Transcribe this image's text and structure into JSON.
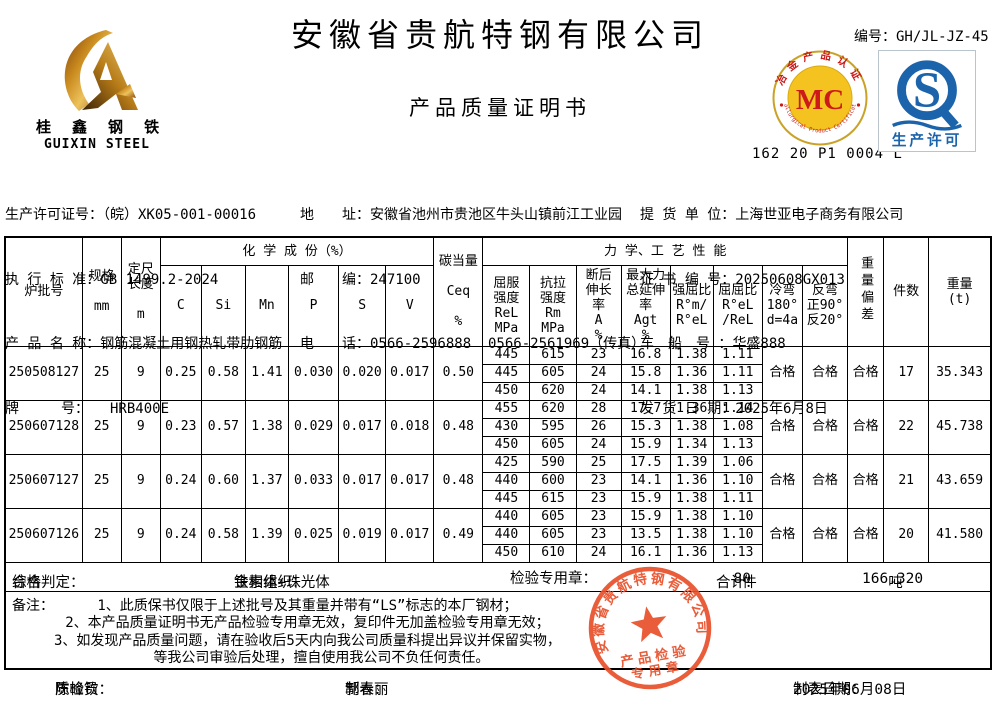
{
  "header": {
    "doc_no": "编号：GH/JL-JZ-45",
    "company_name": "安徽省贵航特钢有限公司",
    "doc_title": "产品质量证明书",
    "mc_cert_code": "162 20 P1 0004 L"
  },
  "guixin_logo": {
    "cn": "桂 鑫 钢 铁",
    "en": "GUIXIN STEEL"
  },
  "mc_logo": {
    "letters": "MC",
    "arc_top": "冶金产品认证",
    "arc_bottom": "Metallurgical Product Certification"
  },
  "sq_logo": {
    "letter": "S",
    "caption": "生产许可"
  },
  "info": {
    "left": [
      {
        "label": "生产许可证号：",
        "value": "（皖）XK05-001-00016"
      },
      {
        "label": "执 行 标 准：",
        "value": "GB 1499.2-2024"
      },
      {
        "label": "产 品 名 称：",
        "value": "钢筋混凝土用钢热轧带肋钢筋"
      },
      {
        "label": "牌　　　号：",
        "value": "　　HRB400E"
      }
    ],
    "middle": [
      {
        "label": "地　　址：",
        "value": "安徽省池州市贵池区牛头山镇前江工业园"
      },
      {
        "label": "邮　　编：",
        "value": "247100"
      },
      {
        "label": "电　　话：",
        "value": "0566-2596888  0566-2561969（传真）"
      }
    ],
    "right": [
      {
        "label": "提 货 单 位：",
        "value": "上海世亚电子商务有限公司"
      },
      {
        "label": "证 书 编 号：",
        "value": "20250608GX013"
      },
      {
        "label": "车　船　号 ：",
        "value": "华盛888"
      },
      {
        "label": "发 货 日 期：",
        "value": "2025年6月8日"
      }
    ]
  },
  "table": {
    "headers": {
      "batch": "炉批号",
      "spec": "规格\n\nmm",
      "length": "定尺\n长度\n\nm",
      "chem_group": "化 学 成 份（%）",
      "c": "C",
      "si": "Si",
      "mn": "Mn",
      "p": "P",
      "s": "S",
      "v": "V",
      "ceq": "碳当量\n\nCeq\n\n%",
      "mech_group": "力 学、工 艺 性 能",
      "rel": "屈服\n强度\nReL\nMPa",
      "rm": "抗拉\n强度\nRm\nMPa",
      "a": "断后\n伸长\n率\nA\n%",
      "agt": "最大力\n总延伸\n率\nAgt\n%",
      "rm_rel": "强屈比\nR°m/\nR°eL",
      "rel_rel": "屈屈比\nR°eL\n/ReL",
      "cold_bend": "冷弯\n180°\nd=4a",
      "reverse_bend": "反弯\n正90°\n反20°",
      "weight_dev": "重量偏差",
      "pieces": "件数",
      "weight": "重量\n(t)"
    },
    "rows": [
      {
        "batch": "250508127",
        "spec": "25",
        "length": "9",
        "chem": [
          "0.25",
          "0.58",
          "1.41",
          "0.030",
          "0.020",
          "0.017"
        ],
        "ceq": "0.50",
        "mech": [
          [
            "445",
            "615",
            "23",
            "16.8",
            "1.38",
            "1.11"
          ],
          [
            "445",
            "605",
            "24",
            "15.8",
            "1.36",
            "1.11"
          ],
          [
            "450",
            "620",
            "24",
            "14.1",
            "1.38",
            "1.13"
          ]
        ],
        "cold_bend": "合格",
        "reverse_bend": "合格",
        "weight_dev": "合格",
        "pieces": "17",
        "weight": "35.343"
      },
      {
        "batch": "250607128",
        "spec": "25",
        "length": "9",
        "chem": [
          "0.23",
          "0.57",
          "1.38",
          "0.029",
          "0.017",
          "0.018"
        ],
        "ceq": "0.48",
        "mech": [
          [
            "455",
            "620",
            "28",
            "17.7",
            "1.36",
            "1.14"
          ],
          [
            "430",
            "595",
            "26",
            "15.3",
            "1.38",
            "1.08"
          ],
          [
            "450",
            "605",
            "24",
            "15.9",
            "1.34",
            "1.13"
          ]
        ],
        "cold_bend": "合格",
        "reverse_bend": "合格",
        "weight_dev": "合格",
        "pieces": "22",
        "weight": "45.738"
      },
      {
        "batch": "250607127",
        "spec": "25",
        "length": "9",
        "chem": [
          "0.24",
          "0.60",
          "1.37",
          "0.033",
          "0.017",
          "0.017"
        ],
        "ceq": "0.48",
        "mech": [
          [
            "425",
            "590",
            "25",
            "17.5",
            "1.39",
            "1.06"
          ],
          [
            "440",
            "600",
            "23",
            "14.1",
            "1.36",
            "1.10"
          ],
          [
            "445",
            "615",
            "23",
            "15.9",
            "1.38",
            "1.11"
          ]
        ],
        "cold_bend": "合格",
        "reverse_bend": "合格",
        "weight_dev": "合格",
        "pieces": "21",
        "weight": "43.659"
      },
      {
        "batch": "250607126",
        "spec": "25",
        "length": "9",
        "chem": [
          "0.24",
          "0.58",
          "1.39",
          "0.025",
          "0.019",
          "0.017"
        ],
        "ceq": "0.49",
        "mech": [
          [
            "440",
            "605",
            "23",
            "15.9",
            "1.38",
            "1.10"
          ],
          [
            "440",
            "605",
            "23",
            "13.5",
            "1.38",
            "1.10"
          ],
          [
            "450",
            "610",
            "24",
            "16.1",
            "1.36",
            "1.13"
          ]
        ],
        "cold_bend": "合格",
        "reverse_bend": "合格",
        "weight_dev": "合格",
        "pieces": "20",
        "weight": "41.580"
      }
    ]
  },
  "summary": {
    "verdict_label": "综合判定：",
    "verdict": "合格",
    "metallography_label": "金相组织：",
    "metallography": "铁素体+珠光体",
    "seal_label": "检验专用章：",
    "total_label": "合计：",
    "total_pieces": "80",
    "pieces_unit": "件",
    "total_weight": "166.320",
    "weight_unit": "吨"
  },
  "notes": {
    "title": "备注：",
    "lines": [
      "1、此质保书仅限于上述批号及其重量并带有“LS”标志的本厂钢材；",
      "2、本产品质量证明书无产品检验专用章无效，复印件无加盖检验专用章无效；",
      "3、如发现产品质量问题，请在验收后5天内向我公司质量科提出异议并保留实物，",
      "等我公司审验后处理，擅自使用我公司不负任何责任。"
    ]
  },
  "stamp": {
    "ring_text": "安徽省贵航特钢有限公司",
    "line1": "产品检验",
    "line2": "专用章"
  },
  "footer": {
    "inspector_label": "质检员：",
    "inspector": "陈峰钦",
    "tabulator_label": "制表：",
    "tabulator": "郭春丽",
    "date_label": "制表日期：",
    "date": "2025年06月08日"
  },
  "colors": {
    "stamp_red": "#e8502a",
    "mc_gold": "#f4c31f",
    "mc_red": "#cc1a1a",
    "sq_blue": "#1b64ab",
    "logo_gold": "#c98a1e"
  }
}
